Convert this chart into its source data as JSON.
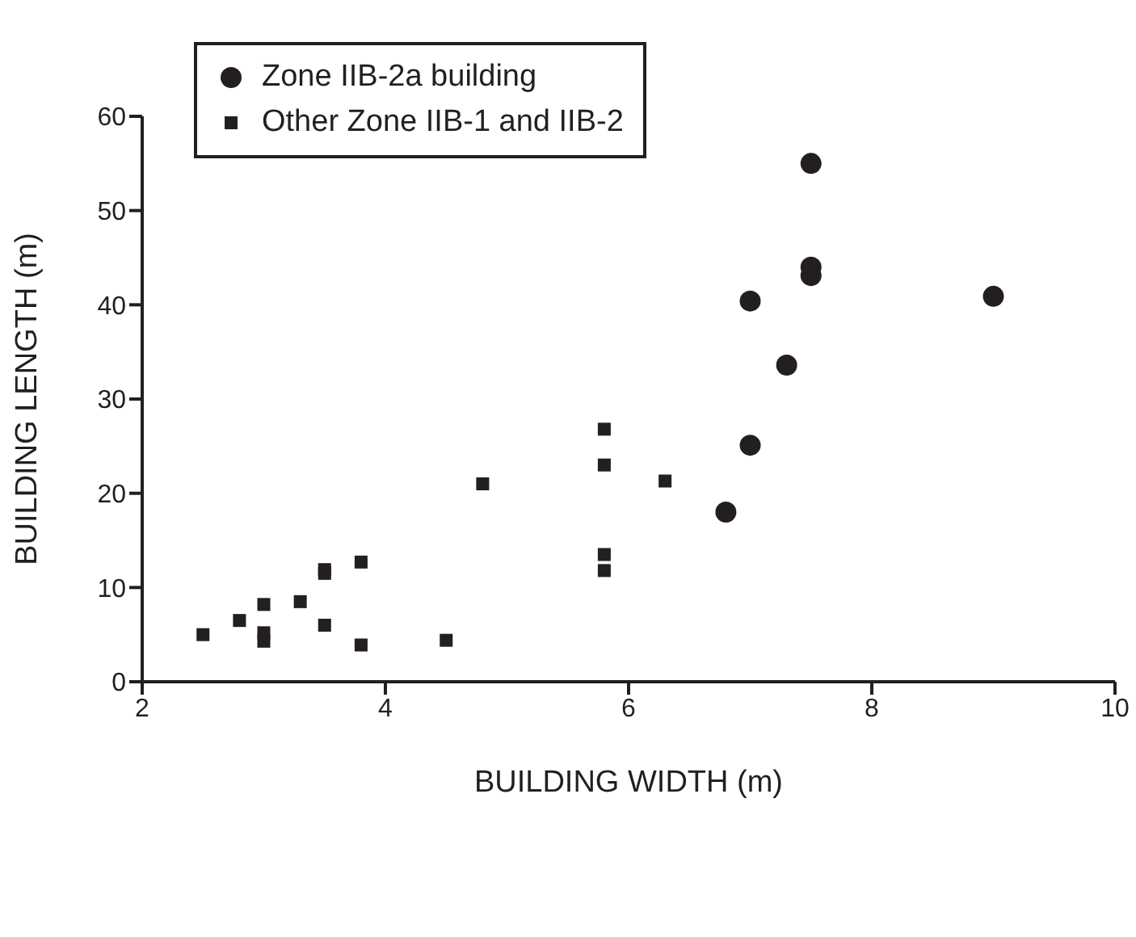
{
  "chart_data": {
    "type": "scatter",
    "xlabel": "BUILDING WIDTH (m)",
    "ylabel": "BUILDING LENGTH (m)",
    "xlim": [
      2,
      10
    ],
    "xticks": [
      2,
      4,
      6,
      8,
      10
    ],
    "ylim": [
      0,
      60
    ],
    "yticks": [
      0,
      10,
      20,
      30,
      40,
      50,
      60
    ],
    "grid": false,
    "legend": "top left",
    "series": [
      {
        "name": "Zone IIB-2a building",
        "color": "#231f20",
        "marker": "circle",
        "x": [
          7.5,
          7.5,
          7.5,
          7.0,
          9.0,
          7.3,
          7.0,
          6.8
        ],
        "values": [
          55.0,
          44.0,
          43.1,
          40.4,
          40.9,
          33.6,
          25.1,
          18.0
        ]
      },
      {
        "name": "Other Zone IIB-1 and IIB-2",
        "color": "#231f20",
        "marker": "square",
        "x": [
          2.5,
          2.8,
          3.0,
          3.0,
          3.0,
          3.3,
          3.5,
          3.5,
          3.5,
          3.8,
          3.8,
          4.5,
          4.8,
          5.8,
          5.8,
          5.8,
          5.8,
          6.3
        ],
        "values": [
          5.0,
          6.5,
          8.2,
          5.2,
          4.3,
          8.5,
          11.9,
          11.5,
          6.0,
          12.7,
          3.9,
          4.4,
          21.0,
          26.8,
          23.0,
          13.5,
          11.8,
          21.3
        ]
      }
    ]
  }
}
